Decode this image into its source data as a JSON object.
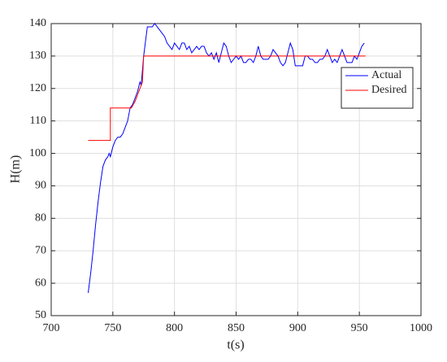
{
  "chart_data": {
    "type": "line",
    "xlabel": "t(s)",
    "ylabel": "H(m)",
    "xlim": [
      700,
      1000
    ],
    "xticks": [
      700,
      750,
      800,
      850,
      900,
      950,
      1000
    ],
    "ylim": [
      50,
      140
    ],
    "yticks": [
      50,
      60,
      70,
      80,
      90,
      100,
      110,
      120,
      130,
      140
    ],
    "grid": true,
    "legend": "upper right",
    "series": [
      {
        "name": "Actual",
        "color": "#0000ff",
        "x": [
          730,
          732,
          734,
          736,
          738,
          740,
          742,
          744,
          746,
          747,
          748,
          750,
          752,
          754,
          756,
          758,
          760,
          762,
          764,
          766,
          768,
          770,
          772,
          773,
          775,
          777,
          778,
          780,
          782,
          784,
          786,
          788,
          790,
          792,
          794,
          796,
          798,
          800,
          802,
          804,
          806,
          808,
          810,
          812,
          814,
          816,
          818,
          820,
          822,
          824,
          826,
          828,
          830,
          832,
          834,
          836,
          838,
          840,
          842,
          844,
          846,
          848,
          850,
          852,
          854,
          856,
          858,
          860,
          862,
          864,
          866,
          868,
          870,
          872,
          874,
          876,
          878,
          880,
          882,
          884,
          886,
          888,
          890,
          892,
          894,
          896,
          898,
          900,
          902,
          904,
          906,
          908,
          910,
          912,
          914,
          916,
          918,
          920,
          922,
          924,
          926,
          928,
          930,
          932,
          934,
          936,
          938,
          940,
          942,
          944,
          946,
          948,
          950,
          952,
          954
        ],
        "values": [
          57,
          63,
          70,
          78,
          85,
          91,
          96,
          98,
          99,
          100,
          99,
          102,
          104,
          105,
          105,
          106,
          108,
          110,
          114,
          115,
          117,
          119,
          122,
          121,
          130,
          136,
          139,
          139,
          139,
          140,
          139,
          138,
          137,
          136,
          134,
          133,
          132,
          134,
          133,
          132,
          134,
          134,
          132,
          133,
          131,
          132,
          133,
          132,
          133,
          133,
          131,
          130,
          131,
          129,
          131,
          128,
          131,
          134,
          133,
          130,
          128,
          129,
          130,
          129,
          130,
          128,
          128,
          129,
          129,
          128,
          130,
          133,
          130,
          129,
          129,
          129,
          130,
          132,
          131,
          130,
          128,
          127,
          128,
          131,
          134,
          132,
          127,
          127,
          127,
          127,
          130,
          130,
          129,
          129,
          128,
          128,
          129,
          129,
          130,
          132,
          130,
          128,
          129,
          128,
          130,
          132,
          130,
          128,
          128,
          128,
          130,
          129,
          131,
          133,
          134
        ]
      },
      {
        "name": "Desired",
        "color": "#ff0000",
        "x": [
          730,
          748,
          748,
          765,
          768,
          770,
          772,
          774,
          775,
          955
        ],
        "values": [
          104,
          104,
          114,
          114,
          116,
          118,
          120,
          122,
          130,
          130
        ]
      }
    ]
  }
}
